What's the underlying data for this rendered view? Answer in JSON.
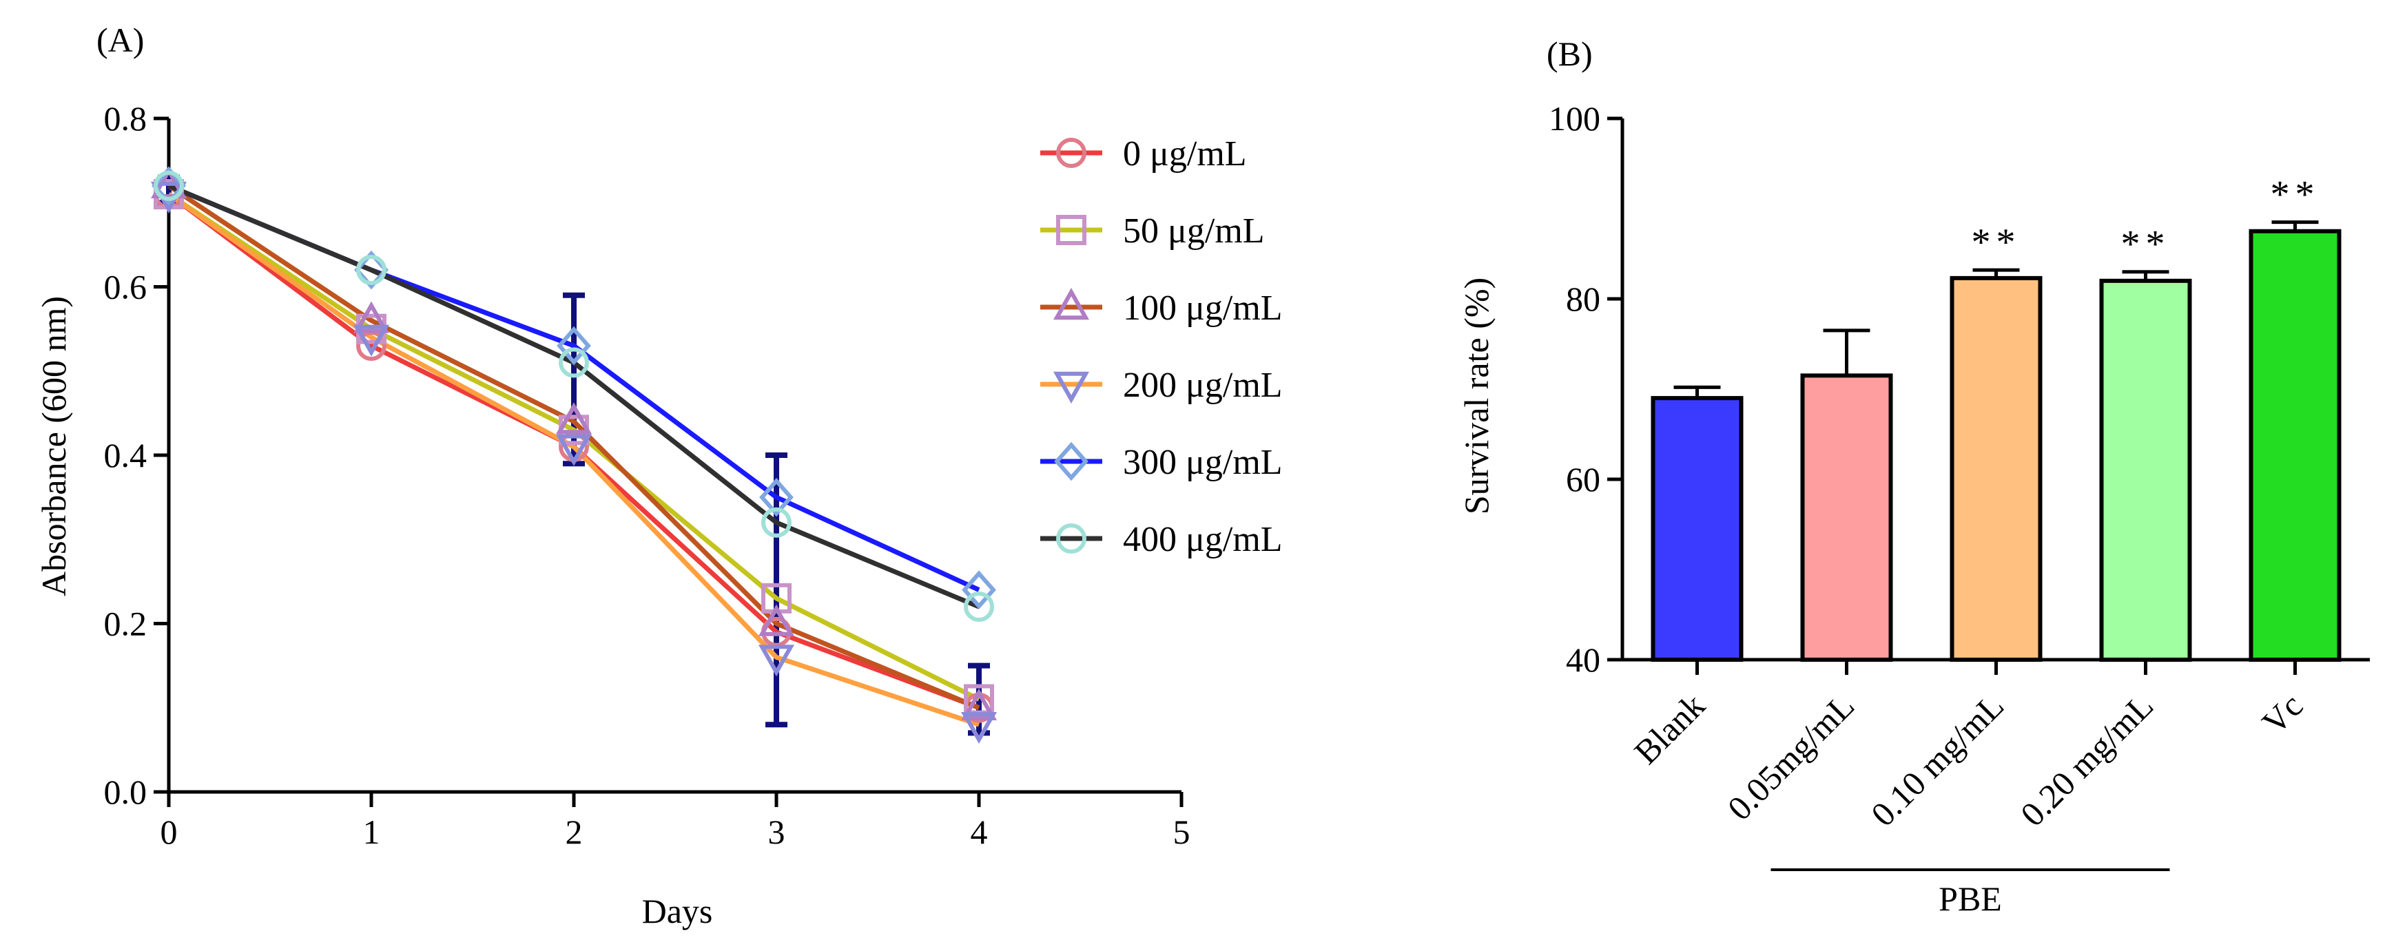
{
  "panel_a_label": "(A)",
  "panel_b_label": "(B)",
  "chart_data": [
    {
      "type": "line",
      "panel": "(A)",
      "xlabel": "Days",
      "ylabel": "Absorbance (600 nm)",
      "xlim": [
        0,
        5
      ],
      "ylim": [
        0,
        0.8
      ],
      "xticks": [
        "0",
        "1",
        "2",
        "3",
        "4",
        "5"
      ],
      "yticks": [
        "0.0",
        "0.2",
        "0.4",
        "0.6",
        "0.8"
      ],
      "x": [
        0,
        1,
        2,
        3,
        4
      ],
      "legend_position": "right",
      "series": [
        {
          "name": "0 μg/mL",
          "values": [
            0.71,
            0.53,
            0.41,
            0.19,
            0.1
          ],
          "line_color": "#ee3b3b",
          "marker_color": "#e07b8a",
          "marker": "circle"
        },
        {
          "name": "50 μg/mL",
          "values": [
            0.71,
            0.55,
            0.43,
            0.23,
            0.11
          ],
          "line_color": "#c4c41e",
          "marker_color": "#c893c8",
          "marker": "square"
        },
        {
          "name": "100 μg/mL",
          "values": [
            0.72,
            0.56,
            0.44,
            0.2,
            0.1
          ],
          "line_color": "#c0541f",
          "marker_color": "#b07dc4",
          "marker": "triangle-up"
        },
        {
          "name": "200 μg/mL",
          "values": [
            0.71,
            0.54,
            0.41,
            0.16,
            0.08
          ],
          "line_color": "#ffa040",
          "marker_color": "#8a8ad8",
          "marker": "triangle-down"
        },
        {
          "name": "300 μg/mL",
          "values": [
            0.72,
            0.62,
            0.53,
            0.35,
            0.24
          ],
          "line_color": "#1a1aff",
          "marker_color": "#7fa6e0",
          "marker": "diamond"
        },
        {
          "name": "400 μg/mL",
          "values": [
            0.72,
            0.62,
            0.51,
            0.32,
            0.22
          ],
          "line_color": "#303030",
          "marker_color": "#9fe0d8",
          "marker": "circle"
        }
      ],
      "error_bars": [
        {
          "x": 0,
          "low": 0.7,
          "high": 0.73
        },
        {
          "x": 2,
          "low": 0.39,
          "high": 0.59
        },
        {
          "x": 3,
          "low": 0.08,
          "high": 0.4
        },
        {
          "x": 4,
          "low": 0.07,
          "high": 0.15
        }
      ]
    },
    {
      "type": "bar",
      "panel": "(B)",
      "ylabel": "Survival rate (%)",
      "ylim": [
        40,
        100
      ],
      "yticks": [
        "40",
        "60",
        "80",
        "100"
      ],
      "categories": [
        "Blank",
        "0.05mg/mL",
        "0.10 mg/mL",
        "0.20 mg/mL",
        "Vc"
      ],
      "values": [
        69,
        71.5,
        82.3,
        82,
        87.5
      ],
      "errors": [
        1.2,
        5,
        0.9,
        1.0,
        1.0
      ],
      "colors": [
        "#3b3bff",
        "#ff9e9e",
        "#ffc080",
        "#a0ffa0",
        "#22dd22"
      ],
      "annotations": [
        "",
        "",
        "**",
        "**",
        "**"
      ],
      "group_label": "PBE",
      "group_categories": [
        "0.05mg/mL",
        "0.10 mg/mL",
        "0.20 mg/mL"
      ]
    }
  ]
}
